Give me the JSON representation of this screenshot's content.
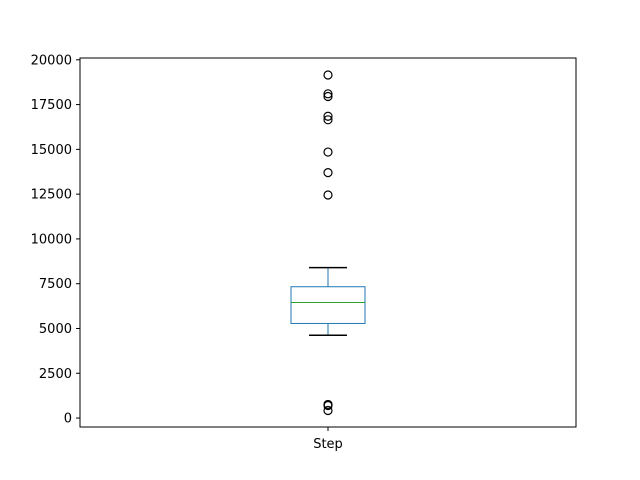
{
  "chart_data": {
    "type": "box",
    "title": "",
    "xlabel": "",
    "ylabel": "",
    "categories": [
      "Step"
    ],
    "ylim": [
      -500,
      20100
    ],
    "yticks": [
      0,
      2500,
      5000,
      7500,
      10000,
      12500,
      15000,
      17500,
      20000
    ],
    "ytick_labels": [
      "0",
      "2500",
      "5000",
      "7500",
      "10000",
      "12500",
      "15000",
      "17500",
      "20000"
    ],
    "grid": false,
    "boxes": [
      {
        "category": "Step",
        "whisker_low": 4620,
        "q1": 5280,
        "median": 6450,
        "q3": 7330,
        "whisker_high": 8400,
        "outliers": [
          420,
          700,
          760,
          12450,
          13700,
          14850,
          16650,
          16850,
          17950,
          18100,
          19150
        ]
      }
    ],
    "colors": {
      "box": "#1f77b4",
      "median": "#2ca02c",
      "whisker": "#000000",
      "outlier_edge": "#000000"
    }
  }
}
